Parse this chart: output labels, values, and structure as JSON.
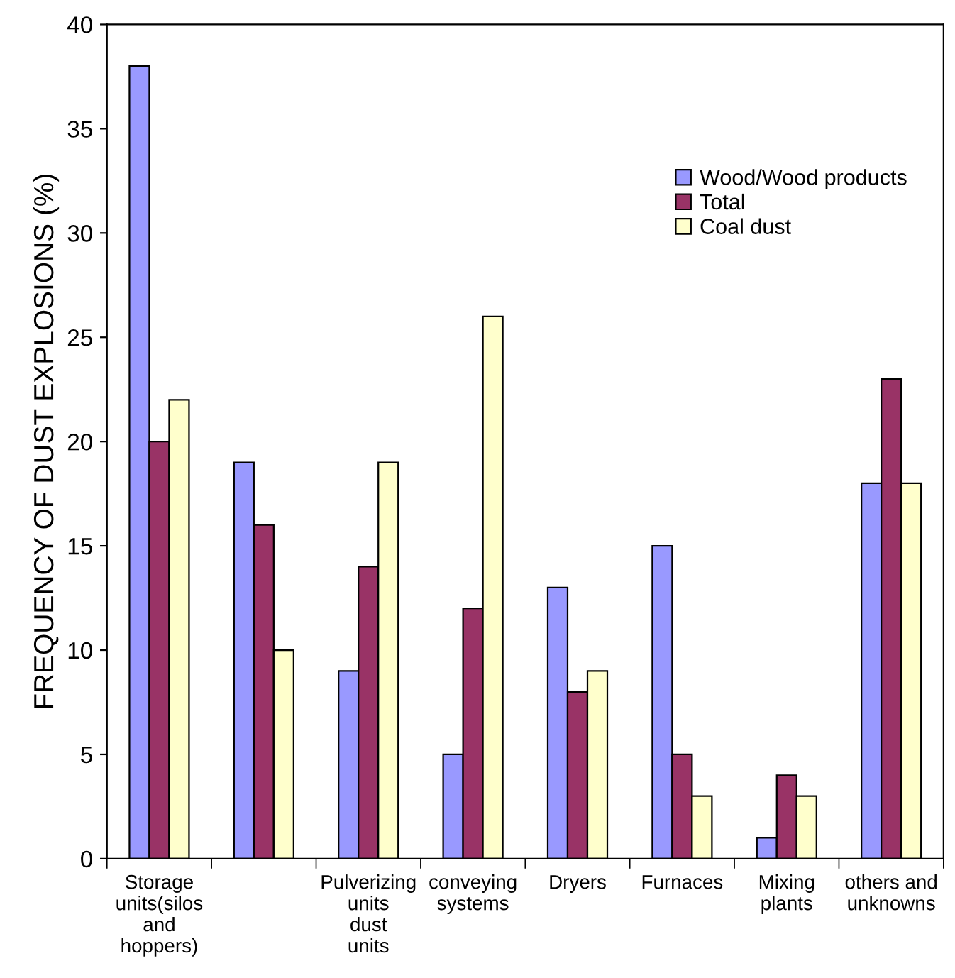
{
  "chart_data": {
    "type": "bar",
    "ylabel": "FREQUENCY OF DUST EXPLOSIONS (%)",
    "categories": [
      "Storage\nunits(silos\nand\nhoppers)",
      null,
      "Pulverizing\nunits\ndust\nunits",
      "conveying\nsystems",
      "Dryers",
      "Furnaces",
      "Mixing\nplants",
      "others and\nunknowns"
    ],
    "series": [
      {
        "name": "Wood/Wood products",
        "color": "#9999ff",
        "values": [
          38,
          19,
          9,
          5,
          13,
          15,
          1,
          18
        ]
      },
      {
        "name": "Total",
        "color": "#993366",
        "values": [
          20,
          16,
          14,
          12,
          8,
          5,
          4,
          23
        ]
      },
      {
        "name": "Coal dust",
        "color": "#ffffcc",
        "values": [
          22,
          10,
          19,
          26,
          9,
          3,
          3,
          18
        ]
      }
    ],
    "ylim": [
      0,
      40
    ],
    "yticks": [
      0,
      5,
      10,
      15,
      20,
      25,
      30,
      35,
      40
    ],
    "grid": false,
    "legend": "top right"
  }
}
